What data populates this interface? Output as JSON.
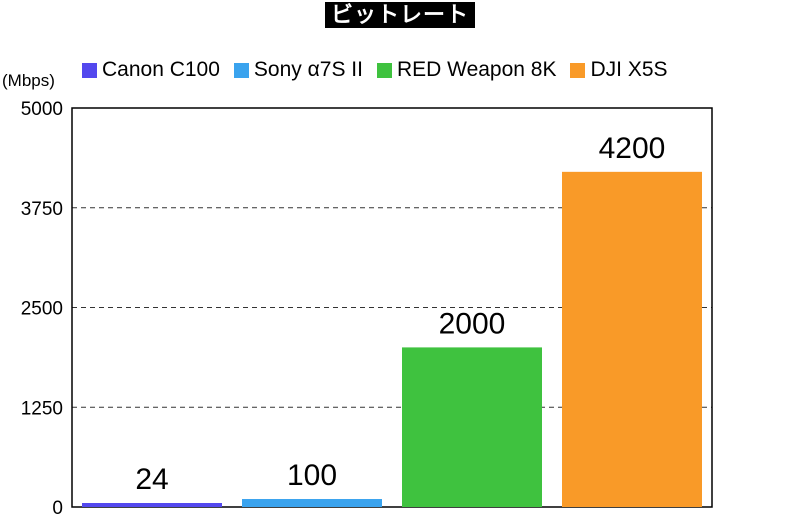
{
  "chart_data": {
    "type": "bar",
    "title": "ビットレート",
    "ylabel": "(Mbps)",
    "ylim": [
      0,
      5000
    ],
    "yticks": [
      "0",
      "1250",
      "2500",
      "3750",
      "5000"
    ],
    "grid": "horizontal dashed",
    "legend_position": "top",
    "categories": [
      "Canon C100",
      "Sony α7S II",
      "RED Weapon 8K",
      "DJI X5S"
    ],
    "values": [
      24,
      100,
      2000,
      4200
    ],
    "value_labels": [
      "24",
      "100",
      "2000",
      "4200"
    ],
    "colors": [
      "#5348ee",
      "#3aa3ee",
      "#3fc23f",
      "#f99a28"
    ]
  }
}
